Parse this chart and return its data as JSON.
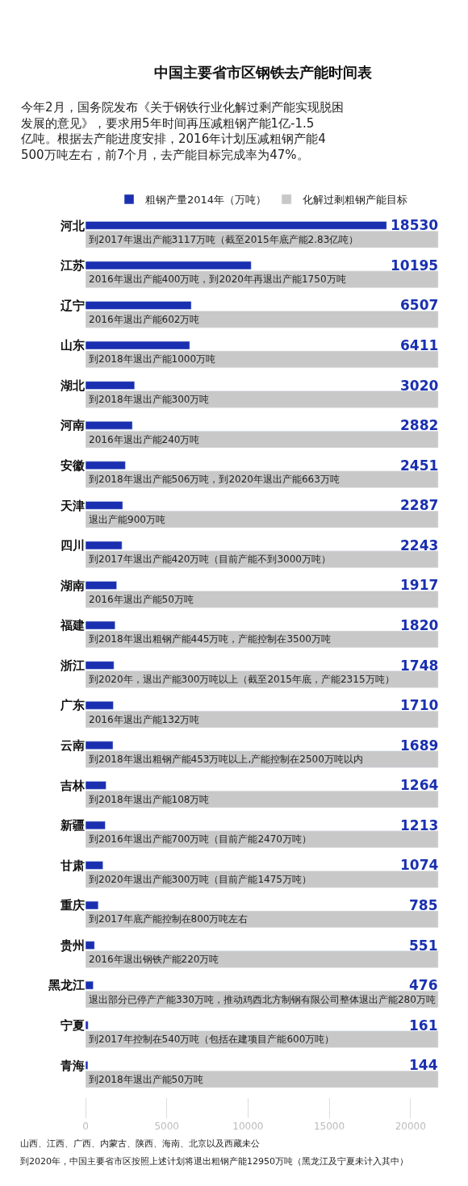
{
  "chart_data": {
    "type": "bar",
    "orientation": "horizontal",
    "title": "中国主要省市区钢铁去产能时间表",
    "subtitle": "今年2月，国务院发布《关于钢铁行业化解过剩产能实现脱困发展的意见》，要求用5年时间再压减粗钢产能1亿-1.5亿吨。根据去产能进度安排，2016年计划压减粗钢产能4500万吨左右，前7个月，去产能目标完成率为47%。",
    "categories": [
      "河北",
      "江苏",
      "辽宁",
      "山东",
      "湖北",
      "河南",
      "安徽",
      "天津",
      "四川",
      "湖南",
      "福建",
      "浙江",
      "广东",
      "云南",
      "吉林",
      "新疆",
      "甘肃",
      "重庆",
      "贵州",
      "黑龙江",
      "宁夏",
      "青海"
    ],
    "series": [
      {
        "name": "粗钢产量2014年（万吨）",
        "color": "#1a30b0",
        "values": [
          18530,
          10195,
          6507,
          6411,
          3020,
          2882,
          2451,
          2287,
          2243,
          1917,
          1820,
          1748,
          1710,
          1689,
          1264,
          1213,
          1074,
          785,
          551,
          476,
          161,
          144
        ],
        "value_labels": [
          "18530",
          "10195",
          "6507",
          "6411",
          "3020",
          "2882",
          "2451",
          "2287",
          "2243",
          "1917",
          "1820",
          "1748",
          "1710",
          "1689",
          "1264",
          "1213",
          "1074",
          "785",
          "551",
          "476",
          "161",
          "144"
        ]
      },
      {
        "name": "化解过剩粗钢产能目标",
        "color": "#c8c8c8",
        "values": [
          21700,
          21700,
          21700,
          21700,
          21700,
          21700,
          21700,
          21700,
          21700,
          21700,
          21700,
          21700,
          21700,
          21700,
          21700,
          21700,
          21700,
          21700,
          21700,
          21700,
          21700,
          21700
        ]
      }
    ],
    "xlim": [
      0,
      21800
    ],
    "xticks": [
      0,
      5000,
      10000,
      15000,
      20000
    ],
    "legend": "top",
    "annotations": [
      "到2017年退出产能3117万吨（截至2015年底产能2.83亿吨）",
      "2016年退出产能400万吨，到2020年再退出产能1750万吨",
      "2016年退出产能602万吨",
      "到2018年退出产能1000万吨",
      "到2018年退出产能300万吨",
      "2016年退出产能240万吨",
      "到2018年退出产能506万吨，到2020年退出产能663万吨",
      "退出产能900万吨",
      "到2017年退出产能420万吨（目前产能不到3000万吨）",
      "2016年退出产能50万吨",
      "到2018年退出粗钢产能445万吨，产能控制在3500万吨",
      "到2020年，退出产能300万吨以上（截至2015年底，产能2315万吨）",
      "2016年退出产能132万吨",
      "到2018年退出粗钢产能453万吨以上,产能控制在2500万吨以内",
      "到2018年退出产能108万吨",
      "到2016年退出产能700万吨（目前产能2470万吨）",
      "到2020年退出产能300万吨（目前产能1475万吨）",
      "到2017年底产能控制在800万吨左右",
      "2016年退出钢铁产能220万吨",
      "退出部分已停产产能330万吨，推动鸡西北方制钢有限公司整体退出产能280万吨",
      "到2017年控制在540万吨（包括在建项目产能600万吨）",
      "到2018年退出产能50万吨",
      "山西、江西、广西、内蒙古、陕西、海南、北京以及西藏未公",
      "到2020年，中国主要省市区按照上述计划将退出粗钢产能12950万吨（黑龙江及宁夏未计入其中）"
    ]
  }
}
